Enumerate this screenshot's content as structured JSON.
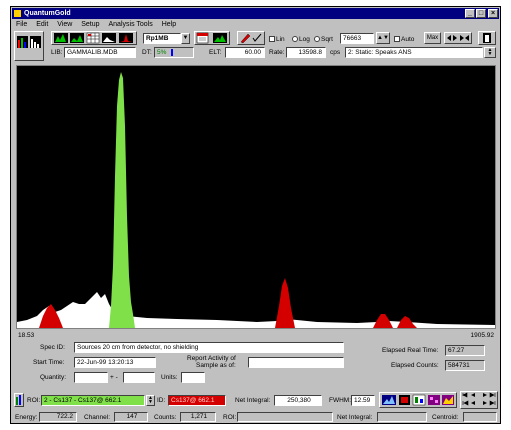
{
  "window": {
    "title": "QuantumGold",
    "buttons": [
      "_",
      "□",
      "×"
    ]
  },
  "menu": [
    "File",
    "Edit",
    "View",
    "Setup",
    "Analysis Tools",
    "Help"
  ],
  "toolbar": {
    "detector": "Rp1MB",
    "lin_label": "Lin",
    "log_label": "Log",
    "sqrt_label": "Sqrt",
    "scale_value": "76663",
    "auto_label": "Auto",
    "max_label": "Max"
  },
  "info": {
    "lib_label": "LIB:",
    "lib_value": "GAMMALIB.MDB",
    "dt_label": "DT:",
    "dt_value": "5%",
    "elt_label": "ELT:",
    "elt_value": "60.00",
    "rate_label": "Rate:",
    "rate_value": "13598.8",
    "rate_unit": "cps",
    "status_value": "2: Static: Speaks ANS"
  },
  "axis": {
    "left": "18.53",
    "right": "1905.92"
  },
  "form": {
    "spec_id_label": "Spec ID:",
    "spec_id_value": "Sources 20 cm from detector, no shielding",
    "start_time_label": "Start Time:",
    "start_time_value": "22-Jun-99 13:20:13",
    "report_label_1": "Report Activity of",
    "report_label_2": "Sample as of:",
    "quantity_label": "Quantity:",
    "plusminus": "+ -",
    "units_label": "Units:",
    "elapsed_real_label": "Elapsed Real Time:",
    "elapsed_real_value": "67.27",
    "elapsed_counts_label": "Elapsed Counts:",
    "elapsed_counts_value": "584731"
  },
  "roi": {
    "roi_label": "ROI:",
    "roi_value": "2 - Cs137 - Cs137@ 662.1",
    "id_label": "ID:",
    "id_value": "Cs137@ 662.1",
    "net_integral_label": "Net Integral:",
    "net_integral_value": "250,380",
    "fwhm_label": "FWHM:",
    "fwhm_value": "12.59"
  },
  "status": {
    "energy_label": "Energy:",
    "energy_value": "722.2",
    "channel_label": "Channel:",
    "channel_value": "147",
    "counts_label": "Counts:",
    "counts_value": "1,271",
    "roi_label": "ROI:",
    "roi_value": "",
    "net_integral_label": "Net Integral:",
    "net_integral_value": "",
    "centroid_label": "Centroid:",
    "centroid_value": ""
  },
  "colors": {
    "spectrum_bg": "#000000",
    "continuum": "#ffffff",
    "roi_selected": "#7fe04a",
    "roi_other": "#d40000",
    "title_bar": "#000080"
  }
}
